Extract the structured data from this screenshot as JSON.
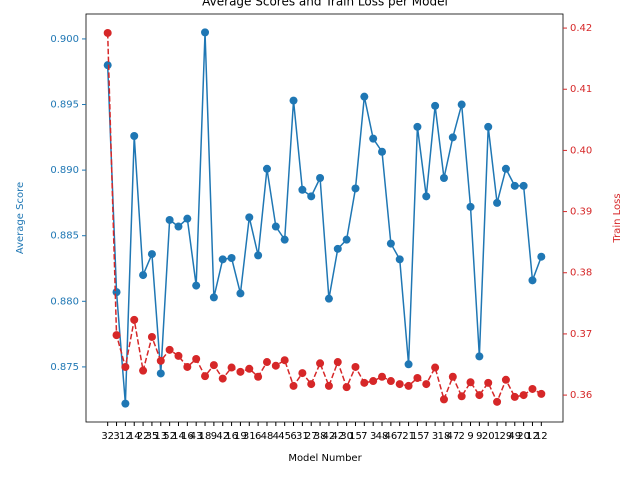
{
  "chart_data": {
    "type": "line",
    "title": "Average Scores and Train Loss per Model",
    "x_label": "Model Number",
    "y_label": "Average Score",
    "y2_label": "Train Loss",
    "categories": [
      "32",
      "3",
      "12",
      "14",
      "22",
      "35",
      "13",
      "52",
      "14",
      "16",
      "43",
      "18",
      "9",
      "42",
      "16",
      "19",
      "31",
      "6",
      "48",
      "4",
      "45",
      "6",
      "31",
      "27",
      "38",
      "42",
      "42",
      "30",
      "15",
      "7",
      "3",
      "48",
      "46",
      "7",
      "21",
      "15",
      "7",
      "3",
      "18",
      "47",
      "2",
      "9",
      "9",
      "20",
      "1",
      "29",
      "49",
      "20",
      "12",
      "12"
    ],
    "series": [
      {
        "name": "Average Score",
        "color": "#1f77b4",
        "axis": "y",
        "dashed": false,
        "values": [
          0.898,
          0.8807,
          0.8722,
          0.8926,
          0.882,
          0.8836,
          0.8745,
          0.8862,
          0.8857,
          0.8863,
          0.8812,
          0.9005,
          0.8803,
          0.8832,
          0.8833,
          0.8806,
          0.8864,
          0.8835,
          0.8901,
          0.8857,
          0.8847,
          0.8953,
          0.8885,
          0.888,
          0.8894,
          0.8802,
          0.884,
          0.8847,
          0.8886,
          0.8956,
          0.8924,
          0.8914,
          0.8844,
          0.8832,
          0.8752,
          0.8933,
          0.888,
          0.8949,
          0.8894,
          0.8925,
          0.895,
          0.8872,
          0.8758,
          0.8933,
          0.8875,
          0.8901,
          0.8888,
          0.8888,
          0.8816,
          0.8834
        ]
      },
      {
        "name": "Train Loss",
        "color": "#d62728",
        "axis": "y2",
        "dashed": true,
        "values": [
          0.4192,
          0.3698,
          0.3646,
          0.3723,
          0.364,
          0.3695,
          0.3656,
          0.3674,
          0.3664,
          0.3646,
          0.3659,
          0.3631,
          0.3649,
          0.3627,
          0.3645,
          0.3638,
          0.3643,
          0.363,
          0.3654,
          0.3648,
          0.3657,
          0.3615,
          0.3636,
          0.3618,
          0.3652,
          0.3615,
          0.3654,
          0.3613,
          0.3646,
          0.362,
          0.3623,
          0.363,
          0.3623,
          0.3618,
          0.3615,
          0.3628,
          0.3618,
          0.3645,
          0.3593,
          0.363,
          0.3598,
          0.3621,
          0.36,
          0.362,
          0.3589,
          0.3625,
          0.3597,
          0.36,
          0.361,
          0.3602
        ]
      }
    ],
    "ylim": [
      0.8708,
      0.9019
    ],
    "yticks": [
      0.875,
      {
        "value": 0.88,
        "label": "0.880"
      },
      0.885,
      {
        "value": 0.89,
        "label": "0.890"
      },
      0.895,
      {
        "value": 0.9,
        "label": "0.900"
      }
    ],
    "y2lim": [
      0.3556,
      0.4223
    ],
    "y2ticks": [
      0.36,
      0.37,
      0.38,
      0.39,
      {
        "value": 0.4,
        "label": "0.40"
      },
      0.41,
      0.42
    ],
    "grid": false
  }
}
